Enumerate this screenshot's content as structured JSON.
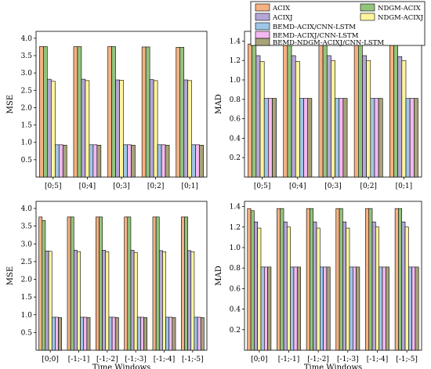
{
  "legend": {
    "entries": [
      {
        "name": "ACIX",
        "color": "#F4B183"
      },
      {
        "name": "ACIXJ",
        "color": "#B4A7D6"
      },
      {
        "name": "BEMD-ACIX/CNN-LSTM",
        "color": "#9FC5E8"
      },
      {
        "name": "BEMD-ACIXJ/CNN-LSTM",
        "color": "#F4B8F0"
      },
      {
        "name": "BEMD-NDGM-ACIXJ/CNN-LSTM",
        "color": "#A8A47A"
      },
      {
        "name": "NDGM-ACIX",
        "color": "#93C47D"
      },
      {
        "name": "NDGM-ACIXJ",
        "color": "#FFF59D"
      }
    ]
  },
  "chart_data": [
    {
      "type": "bar",
      "series_order": [
        "ACIX",
        "NDGM-ACIX",
        "ACIXJ",
        "NDGM-ACIXJ",
        "BEMD-ACIX/CNN-LSTM",
        "BEMD-ACIXJ/CNN-LSTM",
        "BEMD-NDGM-ACIXJ/CNN-LSTM"
      ],
      "categories": [
        "[0;5]",
        "[0;4]",
        "[0;3]",
        "[0;2]",
        "[0;1]"
      ],
      "ylabel": "MSE",
      "xlabel": "",
      "ylim": [
        0,
        4.2
      ],
      "yticks": [
        "0.5",
        "1.0",
        "1.5",
        "2.0",
        "2.5",
        "3.0",
        "3.5",
        "4.0"
      ],
      "series": [
        {
          "name": "ACIX",
          "values": [
            3.76,
            3.76,
            3.76,
            3.75,
            3.74
          ]
        },
        {
          "name": "NDGM-ACIX",
          "values": [
            3.76,
            3.76,
            3.76,
            3.75,
            3.74
          ]
        },
        {
          "name": "ACIXJ",
          "values": [
            2.82,
            2.82,
            2.8,
            2.81,
            2.8
          ]
        },
        {
          "name": "NDGM-ACIXJ",
          "values": [
            2.76,
            2.78,
            2.79,
            2.78,
            2.78
          ]
        },
        {
          "name": "BEMD-ACIX/CNN-LSTM",
          "values": [
            0.93,
            0.93,
            0.93,
            0.93,
            0.93
          ]
        },
        {
          "name": "BEMD-ACIXJ/CNN-LSTM",
          "values": [
            0.93,
            0.93,
            0.93,
            0.93,
            0.93
          ]
        },
        {
          "name": "BEMD-NDGM-ACIXJ/CNN-LSTM",
          "values": [
            0.92,
            0.92,
            0.92,
            0.92,
            0.92
          ]
        }
      ]
    },
    {
      "type": "bar",
      "series_order": [
        "ACIX",
        "NDGM-ACIX",
        "ACIXJ",
        "NDGM-ACIXJ",
        "BEMD-ACIX/CNN-LSTM",
        "BEMD-ACIXJ/CNN-LSTM",
        "BEMD-NDGM-ACIXJ/CNN-LSTM"
      ],
      "categories": [
        "[0;5]",
        "[0;4]",
        "[0;3]",
        "[0;2]",
        "[0;1]"
      ],
      "ylabel": "MAD",
      "xlabel": "",
      "ylim": [
        0,
        1.5
      ],
      "yticks": [
        "0.2",
        "0.4",
        "0.6",
        "0.8",
        "1.0",
        "1.2",
        "1.4"
      ],
      "series": [
        {
          "name": "ACIX",
          "values": [
            1.37,
            1.37,
            1.37,
            1.37,
            1.37
          ]
        },
        {
          "name": "NDGM-ACIX",
          "values": [
            1.37,
            1.37,
            1.37,
            1.37,
            1.37
          ]
        },
        {
          "name": "ACIXJ",
          "values": [
            1.25,
            1.25,
            1.25,
            1.25,
            1.24
          ]
        },
        {
          "name": "NDGM-ACIXJ",
          "values": [
            1.19,
            1.19,
            1.2,
            1.2,
            1.2
          ]
        },
        {
          "name": "BEMD-ACIX/CNN-LSTM",
          "values": [
            0.81,
            0.81,
            0.81,
            0.81,
            0.81
          ]
        },
        {
          "name": "BEMD-ACIXJ/CNN-LSTM",
          "values": [
            0.81,
            0.81,
            0.81,
            0.81,
            0.81
          ]
        },
        {
          "name": "BEMD-NDGM-ACIXJ/CNN-LSTM",
          "values": [
            0.81,
            0.81,
            0.81,
            0.81,
            0.81
          ]
        }
      ]
    },
    {
      "type": "bar",
      "series_order": [
        "ACIX",
        "NDGM-ACIX",
        "ACIXJ",
        "NDGM-ACIXJ",
        "BEMD-ACIX/CNN-LSTM",
        "BEMD-ACIXJ/CNN-LSTM",
        "BEMD-NDGM-ACIXJ/CNN-LSTM"
      ],
      "categories": [
        "[0;0]",
        "[-1;-1]",
        "[-1;-2]",
        "[-1;-3]",
        "[-1;-4]",
        "[-1;-5]"
      ],
      "ylabel": "MSE",
      "xlabel": "Time Windows",
      "ylim": [
        0,
        4.2
      ],
      "yticks": [
        "0.5",
        "1.0",
        "1.5",
        "2.0",
        "2.5",
        "3.0",
        "3.5",
        "4.0"
      ],
      "series": [
        {
          "name": "ACIX",
          "values": [
            3.76,
            3.76,
            3.76,
            3.76,
            3.76,
            3.76
          ]
        },
        {
          "name": "NDGM-ACIX",
          "values": [
            3.66,
            3.76,
            3.76,
            3.76,
            3.76,
            3.76
          ]
        },
        {
          "name": "ACIXJ",
          "values": [
            2.8,
            2.82,
            2.82,
            2.82,
            2.81,
            2.81
          ]
        },
        {
          "name": "NDGM-ACIXJ",
          "values": [
            2.79,
            2.78,
            2.78,
            2.76,
            2.78,
            2.78
          ]
        },
        {
          "name": "BEMD-ACIX/CNN-LSTM",
          "values": [
            0.93,
            0.93,
            0.93,
            0.93,
            0.93,
            0.93
          ]
        },
        {
          "name": "BEMD-ACIXJ/CNN-LSTM",
          "values": [
            0.93,
            0.93,
            0.93,
            0.93,
            0.93,
            0.93
          ]
        },
        {
          "name": "BEMD-NDGM-ACIXJ/CNN-LSTM",
          "values": [
            0.92,
            0.92,
            0.92,
            0.92,
            0.92,
            0.92
          ]
        }
      ]
    },
    {
      "type": "bar",
      "series_order": [
        "ACIX",
        "NDGM-ACIX",
        "ACIXJ",
        "NDGM-ACIXJ",
        "BEMD-ACIX/CNN-LSTM",
        "BEMD-ACIXJ/CNN-LSTM",
        "BEMD-NDGM-ACIXJ/CNN-LSTM"
      ],
      "categories": [
        "[0;0]",
        "[-1;-1]",
        "[-1;-2]",
        "[-1;-3]",
        "[-1;-4]",
        "[-1;-5]"
      ],
      "ylabel": "MAD",
      "xlabel": "Time Windows",
      "ylim": [
        0,
        1.45
      ],
      "yticks": [
        "0.2",
        "0.4",
        "0.6",
        "0.8",
        "1.0",
        "1.2",
        "1.4"
      ],
      "series": [
        {
          "name": "ACIX",
          "values": [
            1.38,
            1.38,
            1.38,
            1.38,
            1.38,
            1.38
          ]
        },
        {
          "name": "NDGM-ACIX",
          "values": [
            1.36,
            1.38,
            1.38,
            1.38,
            1.38,
            1.38
          ]
        },
        {
          "name": "ACIXJ",
          "values": [
            1.25,
            1.25,
            1.25,
            1.25,
            1.25,
            1.25
          ]
        },
        {
          "name": "NDGM-ACIXJ",
          "values": [
            1.19,
            1.2,
            1.19,
            1.19,
            1.2,
            1.2
          ]
        },
        {
          "name": "BEMD-ACIX/CNN-LSTM",
          "values": [
            0.81,
            0.81,
            0.81,
            0.81,
            0.81,
            0.81
          ]
        },
        {
          "name": "BEMD-ACIXJ/CNN-LSTM",
          "values": [
            0.81,
            0.81,
            0.81,
            0.81,
            0.81,
            0.81
          ]
        },
        {
          "name": "BEMD-NDGM-ACIXJ/CNN-LSTM",
          "values": [
            0.81,
            0.81,
            0.81,
            0.81,
            0.81,
            0.81
          ]
        }
      ]
    }
  ]
}
